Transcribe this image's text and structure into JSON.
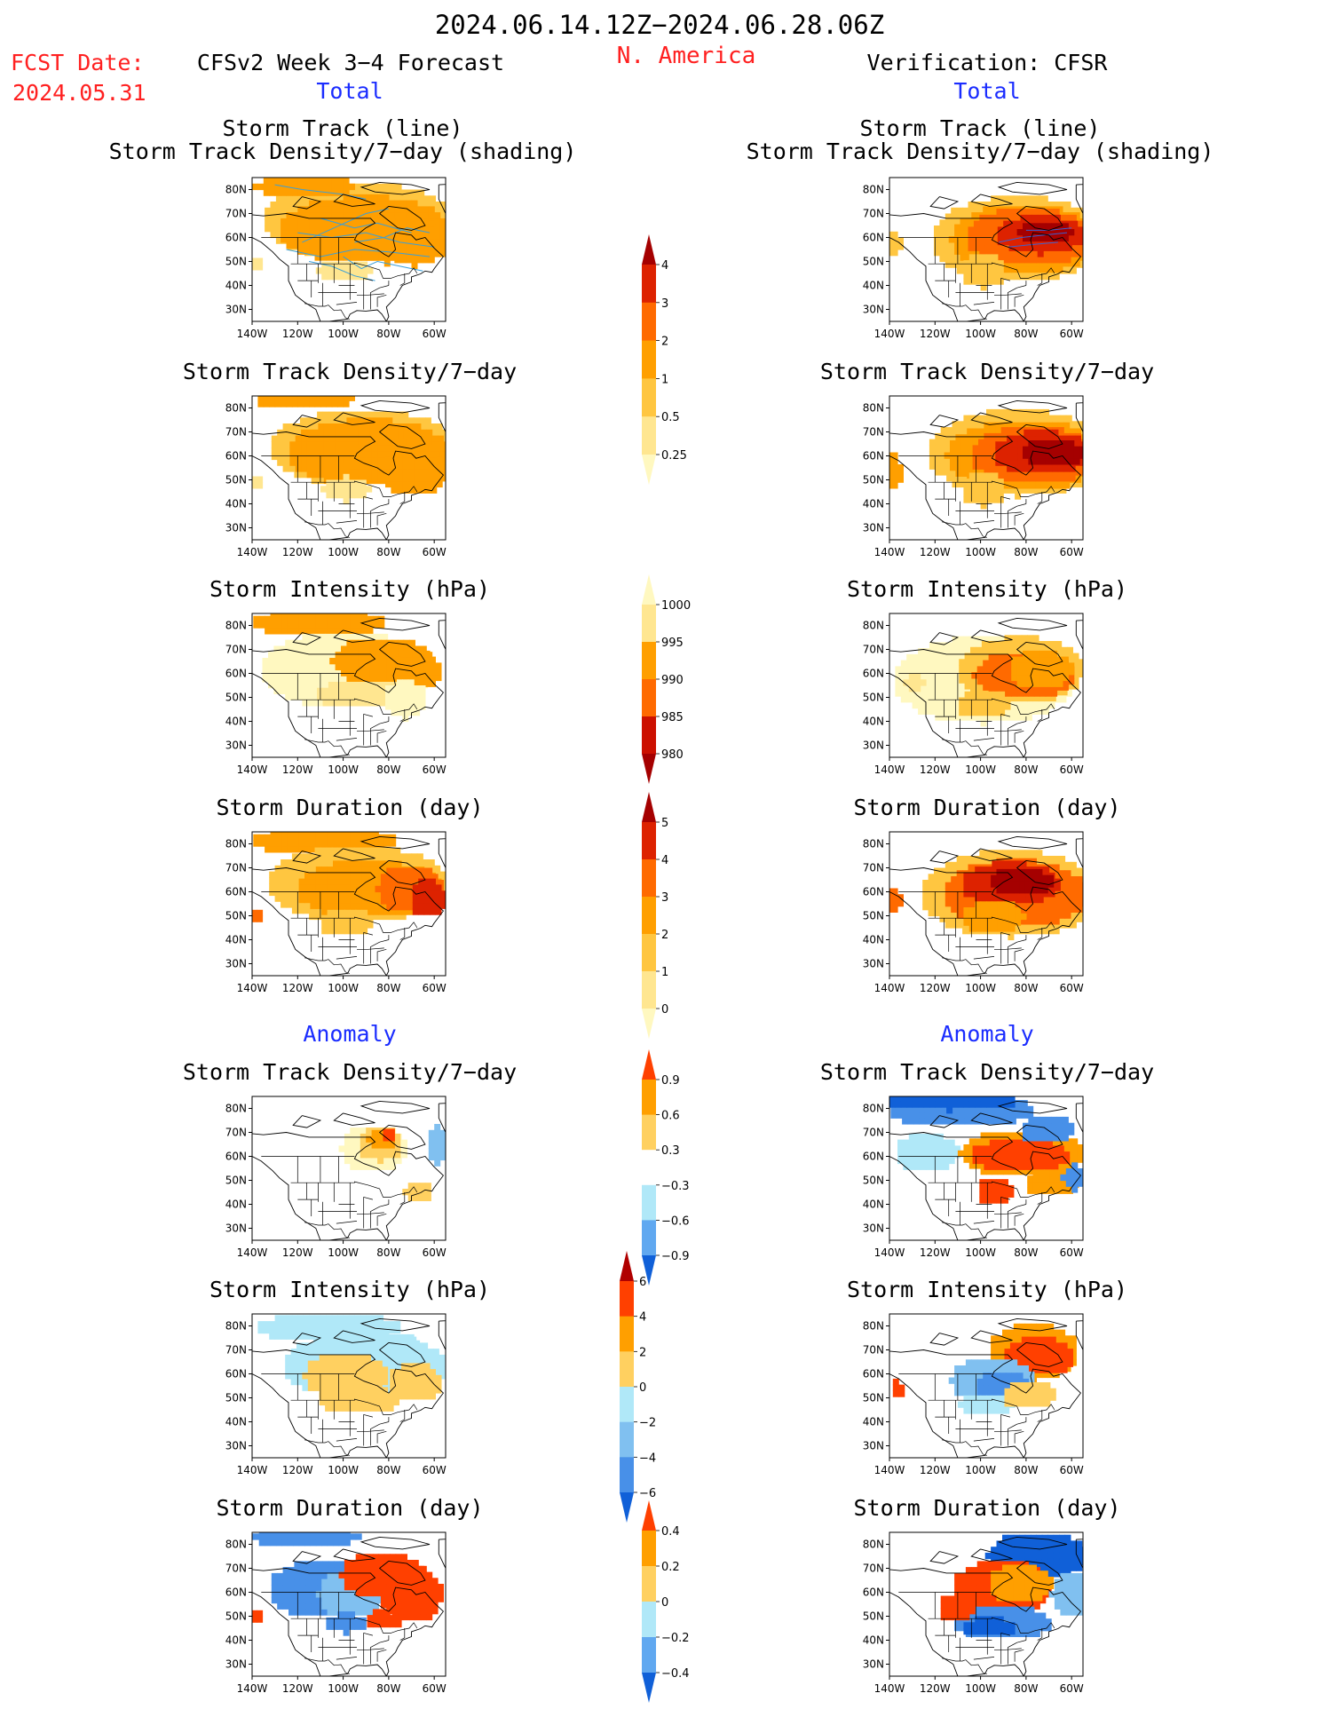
{
  "header": {
    "period": "2024.06.14.12Z−2024.06.28.06Z",
    "region": "N. America",
    "fcst_label": "FCST Date:",
    "fcst_date": "2024.05.31",
    "left_title": "CFSv2 Week 3−4 Forecast",
    "right_title": "Verification: CFSR",
    "total_left": "Total",
    "total_right": "Total",
    "anomaly_left": "Anomaly",
    "anomaly_right": "Anomaly"
  },
  "axes": {
    "lat_ticks": [
      "80N",
      "70N",
      "60N",
      "50N",
      "40N",
      "30N"
    ],
    "lon_ticks": [
      "140W",
      "120W",
      "100W",
      "80W",
      "60W"
    ]
  },
  "panel_titles": {
    "track_line": "Storm Track (line)",
    "track_shading": "Storm Track Density/7−day (shading)",
    "density": "Storm Track Density/7−day",
    "intensity": "Storm Intensity (hPa)",
    "duration": "Storm Duration (day)"
  },
  "colorbars": {
    "density_total": {
      "labels": [
        "4",
        "3",
        "2",
        "1",
        "0.5",
        "0.25"
      ],
      "colors": [
        "#a50000",
        "#dd2200",
        "#ff6a00",
        "#ff9f00",
        "#ffc640",
        "#ffe690",
        "#fff8c0"
      ]
    },
    "intensity_total": {
      "labels": [
        "1000",
        "995",
        "990",
        "985",
        "980"
      ],
      "colors": [
        "#fff8c0",
        "#ffe690",
        "#ff9f00",
        "#ff6a00",
        "#cc1000",
        "#a50000"
      ]
    },
    "duration_total": {
      "labels": [
        "5",
        "4",
        "3",
        "2",
        "1",
        "0"
      ],
      "colors": [
        "#a50000",
        "#dd2200",
        "#ff6a00",
        "#ff9f00",
        "#ffc640",
        "#ffe690",
        "#fff8c0"
      ]
    },
    "density_anom": {
      "labels": [
        "0.9",
        "0.6",
        "0.3",
        "−0.3",
        "−0.6",
        "−0.9"
      ],
      "colors": [
        "#ff4000",
        "#ff9f00",
        "#ffd060",
        "#ffffff",
        "#b0e8f8",
        "#60a8f0",
        "#1060d8"
      ]
    },
    "intensity_anom": {
      "labels": [
        "6",
        "4",
        "2",
        "0",
        "−2",
        "−4",
        "−6"
      ],
      "colors": [
        "#b00000",
        "#ff4000",
        "#ff9f00",
        "#ffd060",
        "#b0e8f8",
        "#80c0f0",
        "#4890e8",
        "#1060d8"
      ]
    },
    "duration_anom": {
      "labels": [
        "0.4",
        "0.2",
        "0",
        "−0.2",
        "−0.4"
      ],
      "colors": [
        "#ff4000",
        "#ff9f00",
        "#ffd060",
        "#b0e8f8",
        "#60a8f0",
        "#1060d8"
      ]
    }
  },
  "chart_data": [
    {
      "type": "heatmap",
      "panel": "forecast-track",
      "title": "Storm Track (line) / Storm Track Density/7−day (shading)",
      "scheme": "total",
      "pattern": "broad orange over Canada 50N–80N"
    },
    {
      "type": "heatmap",
      "panel": "verification-track",
      "title": "Storm Track (line) / Storm Track Density/7−day (shading)",
      "scheme": "total",
      "pattern": "dark red maximum over Hudson Bay/Labrador"
    },
    {
      "type": "heatmap",
      "panel": "forecast-density",
      "title": "Storm Track Density/7−day",
      "scheme": "total"
    },
    {
      "type": "heatmap",
      "panel": "verification-density",
      "title": "Storm Track Density/7−day",
      "scheme": "total"
    },
    {
      "type": "heatmap",
      "panel": "forecast-intensity",
      "title": "Storm Intensity (hPa)",
      "scheme": "intensity"
    },
    {
      "type": "heatmap",
      "panel": "verification-intensity",
      "title": "Storm Intensity (hPa)",
      "scheme": "intensity"
    },
    {
      "type": "heatmap",
      "panel": "forecast-duration",
      "title": "Storm Duration (day)",
      "scheme": "total"
    },
    {
      "type": "heatmap",
      "panel": "verification-duration",
      "title": "Storm Duration (day)",
      "scheme": "total"
    },
    {
      "type": "heatmap",
      "panel": "forecast-density-anom",
      "title": "Storm Track Density/7−day",
      "scheme": "anomaly"
    },
    {
      "type": "heatmap",
      "panel": "verification-density-anom",
      "title": "Storm Track Density/7−day",
      "scheme": "anomaly"
    },
    {
      "type": "heatmap",
      "panel": "forecast-intensity-anom",
      "title": "Storm Intensity (hPa)",
      "scheme": "anomaly"
    },
    {
      "type": "heatmap",
      "panel": "verification-intensity-anom",
      "title": "Storm Intensity (hPa)",
      "scheme": "anomaly"
    },
    {
      "type": "heatmap",
      "panel": "forecast-duration-anom",
      "title": "Storm Duration (day)",
      "scheme": "anomaly"
    },
    {
      "type": "heatmap",
      "panel": "verification-duration-anom",
      "title": "Storm Duration (day)",
      "scheme": "anomaly"
    }
  ]
}
